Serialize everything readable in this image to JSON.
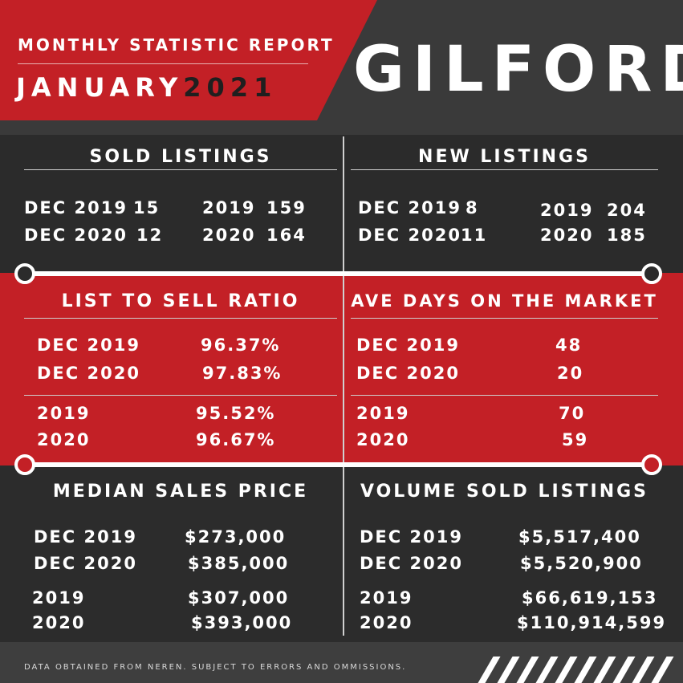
{
  "header": {
    "report_title": "MONTHLY STATISTIC REPORT",
    "month": "JANUARY",
    "year": "2021",
    "city": "GILFORD"
  },
  "sold_listings": {
    "title": "SOLD LISTINGS",
    "rows": [
      {
        "label": "DEC 2019",
        "value": "15"
      },
      {
        "label": "DEC 2020",
        "value": "12"
      }
    ],
    "yearly": [
      {
        "label": "2019",
        "value": "159"
      },
      {
        "label": "2020",
        "value": "164"
      }
    ]
  },
  "new_listings": {
    "title": "NEW LISTINGS",
    "rows": [
      {
        "label": "DEC 2019",
        "value": "8"
      },
      {
        "label": "DEC 2020",
        "value": "11"
      }
    ],
    "yearly": [
      {
        "label": "2019",
        "value": "204"
      },
      {
        "label": "2020",
        "value": "185"
      }
    ]
  },
  "list_to_sell": {
    "title": "LIST TO SELL RATIO",
    "rows": [
      {
        "label": "DEC 2019",
        "value": "96.37%"
      },
      {
        "label": "DEC 2020",
        "value": "97.83%"
      }
    ],
    "yearly": [
      {
        "label": "2019",
        "value": "95.52%"
      },
      {
        "label": "2020",
        "value": "96.67%"
      }
    ]
  },
  "ave_days": {
    "title": "AVE DAYS ON THE MARKET",
    "rows": [
      {
        "label": "DEC 2019",
        "value": "48"
      },
      {
        "label": "DEC 2020",
        "value": "20"
      }
    ],
    "yearly": [
      {
        "label": "2019",
        "value": "70"
      },
      {
        "label": "2020",
        "value": "59"
      }
    ]
  },
  "median_price": {
    "title": "MEDIAN SALES PRICE",
    "rows": [
      {
        "label": "DEC 2019",
        "value": "$273,000"
      },
      {
        "label": "DEC 2020",
        "value": "$385,000"
      }
    ],
    "yearly": [
      {
        "label": "2019",
        "value": "$307,000"
      },
      {
        "label": "2020",
        "value": "$393,000"
      }
    ]
  },
  "volume_sold": {
    "title": "VOLUME SOLD LISTINGS",
    "rows": [
      {
        "label": "DEC 2019",
        "value": "$5,517,400"
      },
      {
        "label": "DEC 2020",
        "value": "$5,520,900"
      }
    ],
    "yearly": [
      {
        "label": "2019",
        "value": "$66,619,153"
      },
      {
        "label": "2020",
        "value": "$110,914,599"
      }
    ]
  },
  "footer": {
    "note": "DATA OBTAINED FROM NEREN. SUBJECT TO ERRORS AND OMMISSIONS."
  },
  "colors": {
    "accent_red": "#c32026",
    "dark": "#2b2b2b",
    "text": "#ffffff"
  }
}
